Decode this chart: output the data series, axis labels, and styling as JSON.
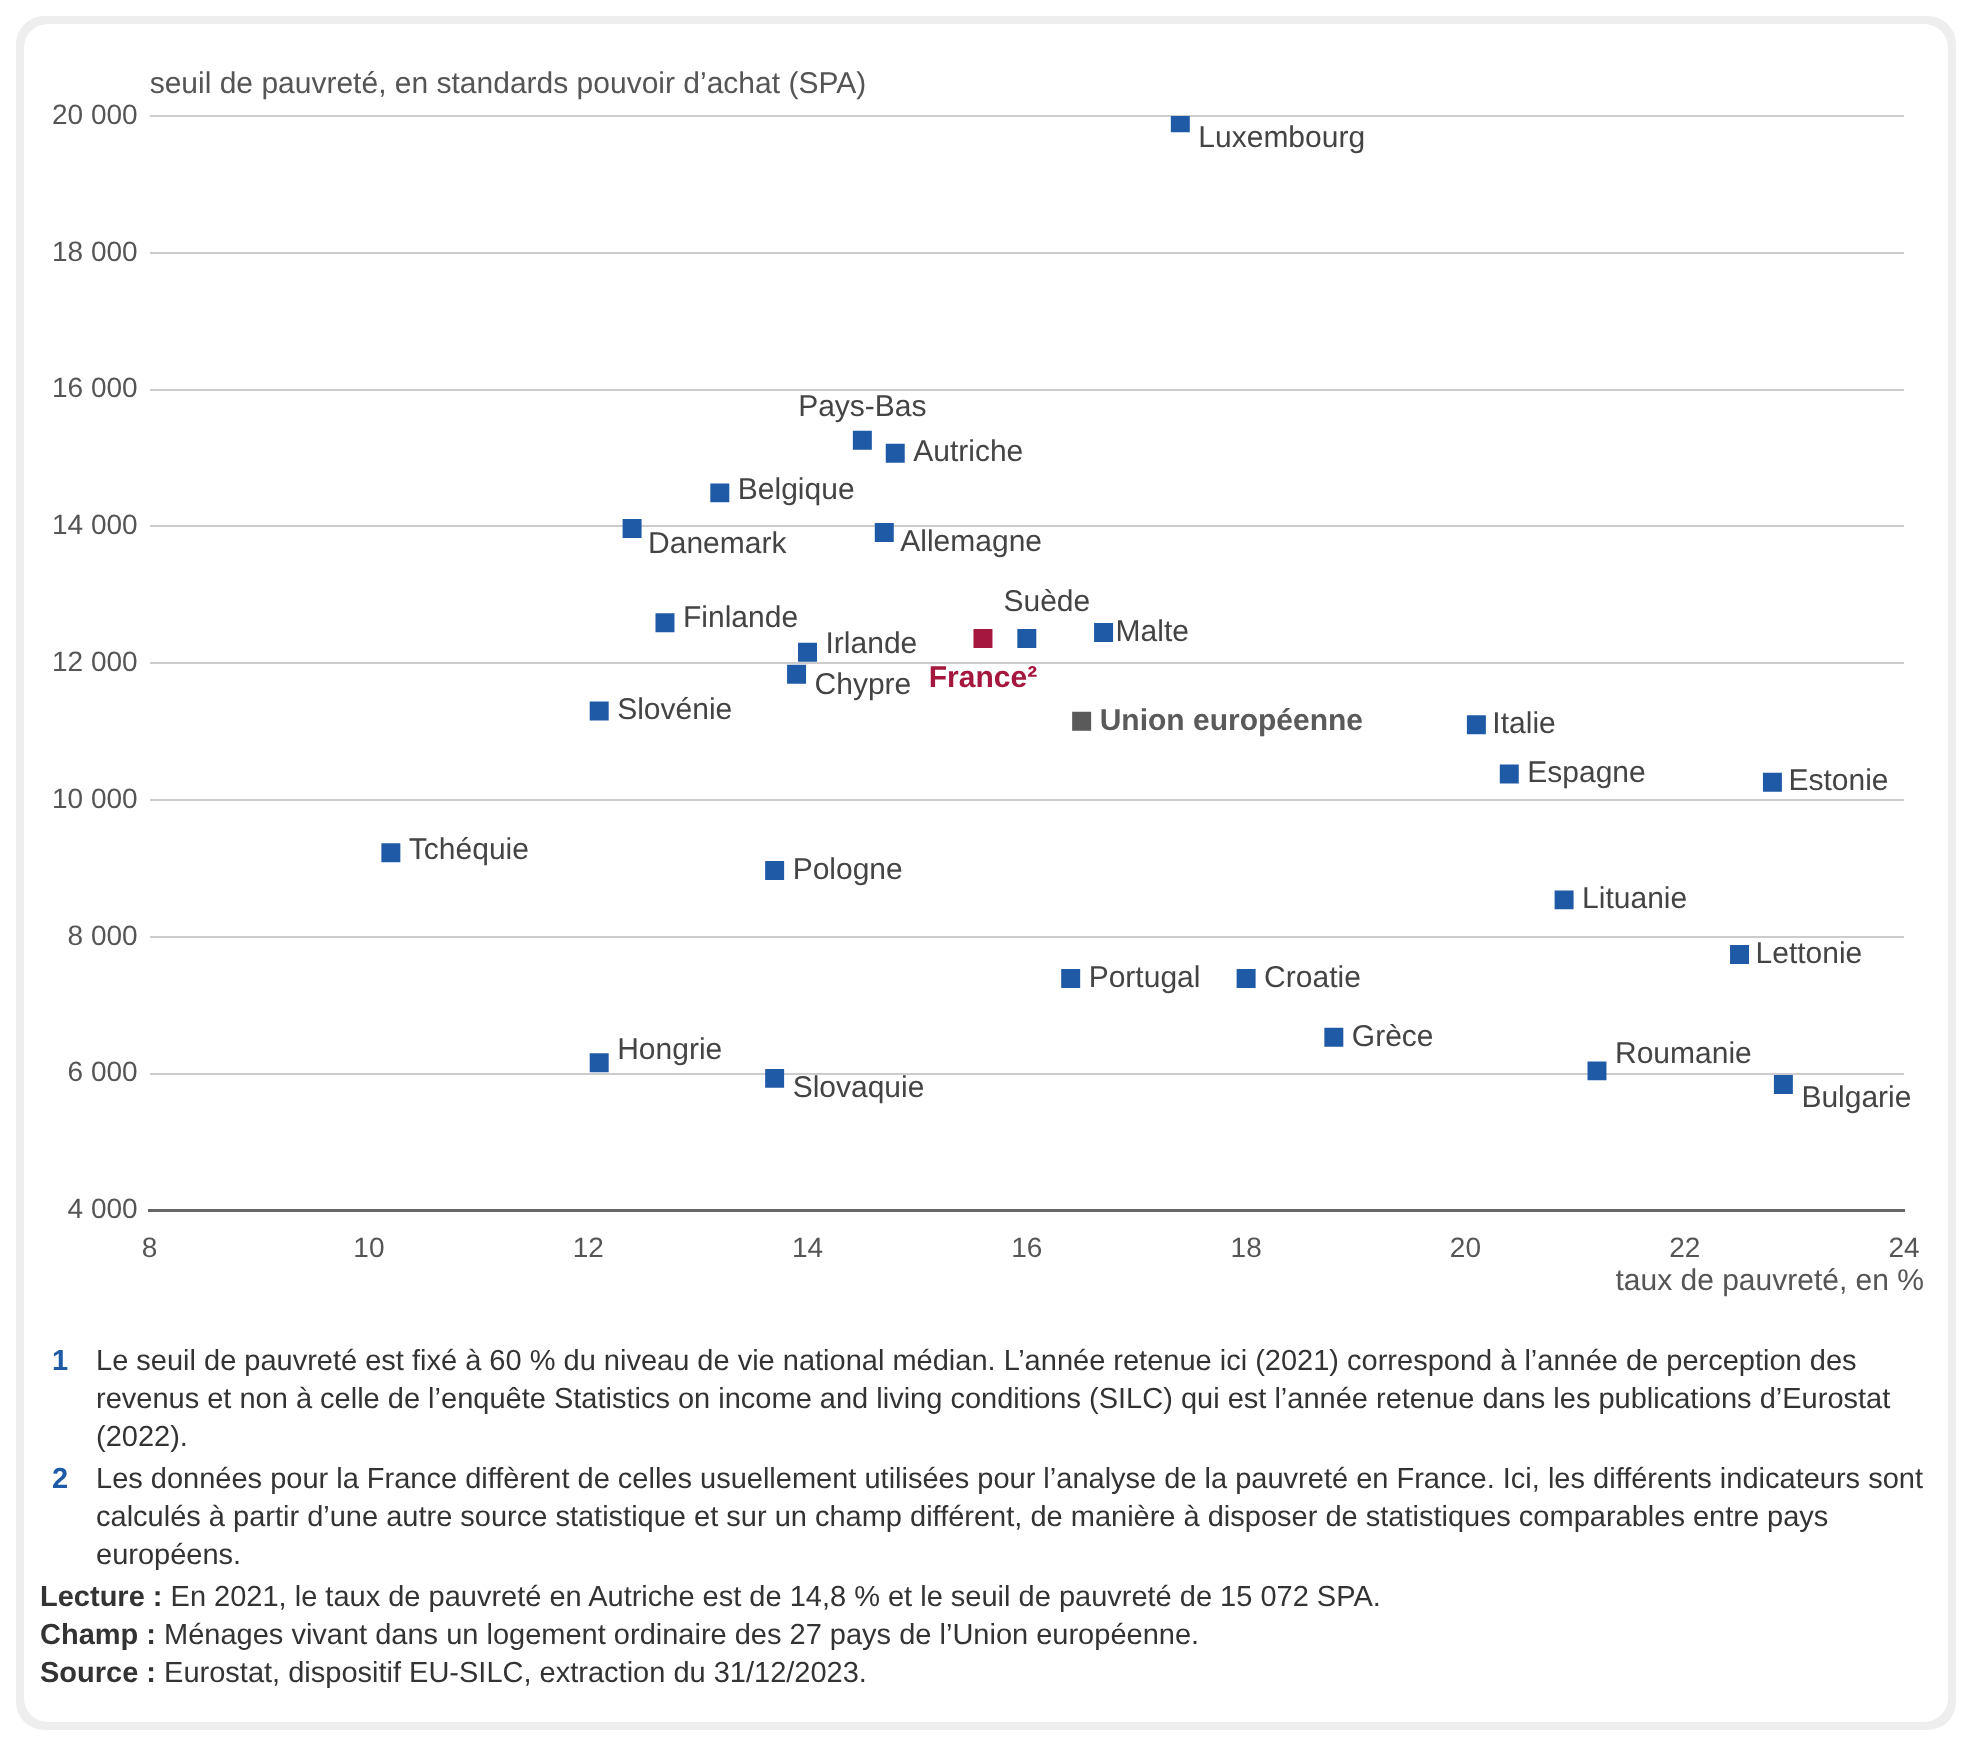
{
  "chart_data": {
    "type": "scatter",
    "xlabel": "taux de pauvreté, en %",
    "ylabel": "seuil de pauvreté, en standards pouvoir d’achat (SPA)",
    "marker": "square",
    "grid": "y",
    "legend": false,
    "xlim": [
      8,
      24
    ],
    "xticks": [
      8,
      10,
      12,
      14,
      16,
      18,
      20,
      22,
      24
    ],
    "ylim": [
      4000,
      20000
    ],
    "yticks": [
      {
        "value": 4000,
        "label": "4 000"
      },
      {
        "value": 6000,
        "label": "6 000"
      },
      {
        "value": 8000,
        "label": "8 000"
      },
      {
        "value": 10000,
        "label": "10 000"
      },
      {
        "value": 12000,
        "label": "12 000"
      },
      {
        "value": 14000,
        "label": "14 000"
      },
      {
        "value": 16000,
        "label": "16 000"
      },
      {
        "value": 18000,
        "label": "18 000"
      },
      {
        "value": 20000,
        "label": "20 000"
      }
    ],
    "series": [
      {
        "color": "#1f5aa6",
        "x": [
          17.4,
          14.5,
          14.8,
          13.2,
          12.4,
          14.7,
          12.7,
          14.0,
          13.9,
          16.0,
          16.7,
          12.1,
          20.1,
          20.4,
          22.8,
          10.2,
          13.7,
          20.9,
          22.5,
          16.4,
          18.0,
          18.8,
          12.1,
          21.2,
          13.7,
          22.9
        ],
        "values": [
          19900,
          15260,
          15070,
          14490,
          13970,
          13910,
          12590,
          12160,
          11840,
          12360,
          12450,
          11300,
          11100,
          10380,
          10260,
          9230,
          8970,
          8540,
          7740,
          7390,
          7390,
          6530,
          6160,
          6040,
          5930,
          5840
        ]
      },
      {
        "name": "France²",
        "color": "#a5173d",
        "x": [
          15.6
        ],
        "values": [
          12360
        ]
      },
      {
        "name": "Union européenne",
        "color": "#5a5a5a",
        "x": [
          16.5
        ],
        "values": [
          11150
        ]
      }
    ],
    "annotations": [
      {
        "text": "Luxembourg",
        "x": 17.4,
        "y": 19900
      },
      {
        "text": "Pays-Bas",
        "x": 14.5,
        "y": 15260
      },
      {
        "text": "Autriche",
        "x": 14.8,
        "y": 15070
      },
      {
        "text": "Belgique",
        "x": 13.2,
        "y": 14490
      },
      {
        "text": "Danemark",
        "x": 12.4,
        "y": 13970
      },
      {
        "text": "Allemagne",
        "x": 14.7,
        "y": 13910
      },
      {
        "text": "Finlande",
        "x": 12.7,
        "y": 12590
      },
      {
        "text": "Irlande",
        "x": 14.0,
        "y": 12160
      },
      {
        "text": "Chypre",
        "x": 13.9,
        "y": 11840
      },
      {
        "text": "Suède",
        "x": 16.0,
        "y": 12360
      },
      {
        "text": "Malte",
        "x": 16.7,
        "y": 12450
      },
      {
        "text": "Slovénie",
        "x": 12.1,
        "y": 11300
      },
      {
        "text": "Italie",
        "x": 20.1,
        "y": 11100
      },
      {
        "text": "Espagne",
        "x": 20.4,
        "y": 10380
      },
      {
        "text": "Estonie",
        "x": 22.8,
        "y": 10260
      },
      {
        "text": "Tchéquie",
        "x": 10.2,
        "y": 9230
      },
      {
        "text": "Pologne",
        "x": 13.7,
        "y": 8970
      },
      {
        "text": "Lituanie",
        "x": 20.9,
        "y": 8540
      },
      {
        "text": "Lettonie",
        "x": 22.5,
        "y": 7740
      },
      {
        "text": "Portugal",
        "x": 16.4,
        "y": 7390
      },
      {
        "text": "Croatie",
        "x": 18.0,
        "y": 7390
      },
      {
        "text": "Grèce",
        "x": 18.8,
        "y": 6530
      },
      {
        "text": "Hongrie",
        "x": 12.1,
        "y": 6160
      },
      {
        "text": "Roumanie",
        "x": 21.2,
        "y": 6040
      },
      {
        "text": "Slovaquie",
        "x": 13.7,
        "y": 5930
      },
      {
        "text": "Bulgarie",
        "x": 22.9,
        "y": 5840
      },
      "1 Le seuil de pauvreté est fixé à 60 % du niveau de vie national médian. L’année retenue ici (2021) correspond à l’année de perception des revenus et non à celle de l’enquête Statistics on income and living conditions (SILC) qui est l’année retenue dans les publications d’Eurostat (2022).",
      "2 Les données pour la France diffèrent de celles usuellement utilisées pour l’analyse de la pauvreté en France. Ici, les différents indicateurs sont calculés à partir d’une autre source statistique et sur un champ différent, de manière à disposer de statistiques comparables entre pays européens.",
      "Lecture : En 2021, le taux de pauvreté en Autriche est de 14,8 % et le seuil de pauvreté de 15 072 SPA.",
      "Champ : Ménages vivant dans un logement ordinaire des 27 pays de l’Union européenne.",
      "Source : Eurostat, dispositif EU-SILC, extraction du 31/12/2023."
    ]
  }
}
